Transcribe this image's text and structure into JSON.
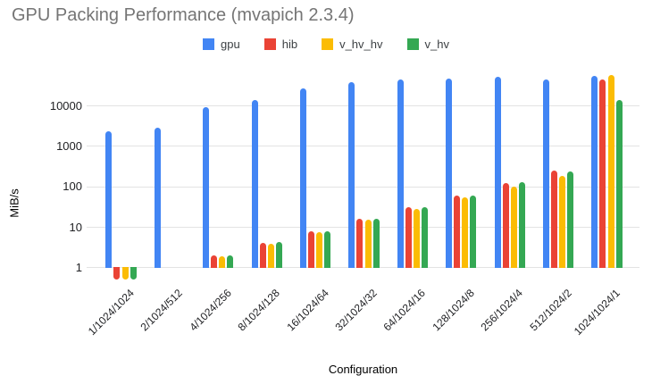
{
  "chart_data": {
    "type": "bar",
    "title": "GPU Packing Performance (mvapich 2.3.4)",
    "xlabel": "Configuration",
    "ylabel": "MiB/s",
    "scale": "log",
    "grid": true,
    "legend_position": "top-center",
    "y_ticks": [
      1,
      10,
      100,
      1000,
      10000
    ],
    "ylim_log": [
      0.45,
      120000
    ],
    "title_color": "#757575",
    "categories": [
      "1/1024/1024",
      "2/1024/512",
      "4/1024/256",
      "8/1024/128",
      "16/1024/64",
      "32/1024/32",
      "64/1024/16",
      "128/1024/8",
      "256/1024/4",
      "512/1024/2",
      "1024/1024/1"
    ],
    "series": [
      {
        "name": "gpu",
        "color": "#4285F4",
        "values": [
          2300,
          2900,
          8900,
          14000,
          26000,
          38000,
          45000,
          46500,
          52000,
          45000,
          55000
        ]
      },
      {
        "name": "hib",
        "color": "#EA4335",
        "values": [
          0.5,
          null,
          2.0,
          4.0,
          7.8,
          16,
          30,
          58,
          120,
          250,
          44000
        ]
      },
      {
        "name": "v_hv_hv",
        "color": "#FBBC04",
        "values": [
          0.5,
          null,
          1.9,
          3.9,
          7.5,
          15,
          28,
          53,
          100,
          180,
          58000
        ]
      },
      {
        "name": "v_hv",
        "color": "#34A853",
        "values": [
          0.5,
          null,
          2.0,
          4.2,
          7.8,
          16,
          31,
          59,
          125,
          235,
          14000
        ]
      }
    ]
  }
}
